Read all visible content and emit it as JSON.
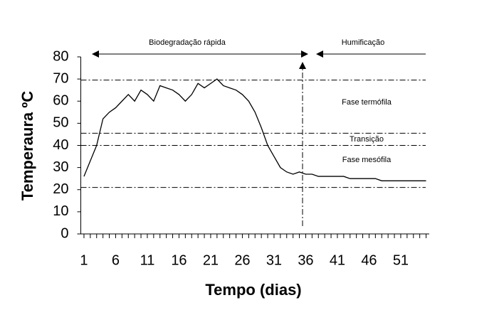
{
  "chart_data": {
    "type": "line",
    "x_label": "Tempo (dias)",
    "y_label": "Temperaura ºC",
    "x": [
      1,
      2,
      3,
      4,
      5,
      6,
      7,
      8,
      9,
      10,
      11,
      12,
      13,
      14,
      15,
      16,
      17,
      18,
      19,
      20,
      21,
      22,
      23,
      24,
      25,
      26,
      27,
      28,
      29,
      30,
      31,
      32,
      33,
      34,
      35,
      36,
      37,
      38,
      39,
      40,
      41,
      42,
      43,
      44,
      45,
      46,
      47,
      48,
      49,
      50,
      51,
      52,
      53,
      54,
      55
    ],
    "series": [
      {
        "color": "#000000",
        "values": [
          26,
          33,
          40,
          52,
          55,
          57,
          60,
          63,
          60,
          65,
          63,
          60,
          67,
          66,
          65,
          63,
          60,
          63,
          68,
          66,
          68,
          70,
          67,
          66,
          65,
          63,
          60,
          55,
          48,
          40,
          35,
          30,
          28,
          27,
          28,
          27,
          27,
          26,
          26,
          26,
          26,
          26,
          25,
          25,
          25,
          25,
          25,
          24,
          24,
          24,
          24,
          24,
          24,
          24,
          24
        ]
      }
    ],
    "xlim": [
      0.5,
      55.5
    ],
    "xticks": [
      1,
      6,
      11,
      16,
      21,
      26,
      31,
      36,
      41,
      46,
      51
    ],
    "xminorticks": [
      1,
      2,
      3,
      4,
      5,
      6,
      7,
      8,
      9,
      10,
      11,
      12,
      13,
      14,
      15,
      16,
      17,
      18,
      19,
      20,
      21,
      22,
      23,
      24,
      25,
      26,
      27,
      28,
      29,
      30,
      31,
      32,
      33,
      34,
      35,
      36,
      37,
      38,
      39,
      40,
      41,
      42,
      43,
      44,
      45,
      46,
      47,
      48,
      49,
      50,
      51,
      52,
      53,
      54,
      55
    ],
    "ylim": [
      0,
      80
    ],
    "yticks": [
      0,
      10,
      20,
      30,
      40,
      50,
      60,
      70,
      80
    ],
    "hlines": [
      69.5,
      45.5,
      40,
      21
    ],
    "vline": 35.5,
    "annotations": [
      "Biodegradação rápida",
      "Humificação",
      "Fase termófila",
      "Transição",
      "Fase mesófila"
    ]
  }
}
